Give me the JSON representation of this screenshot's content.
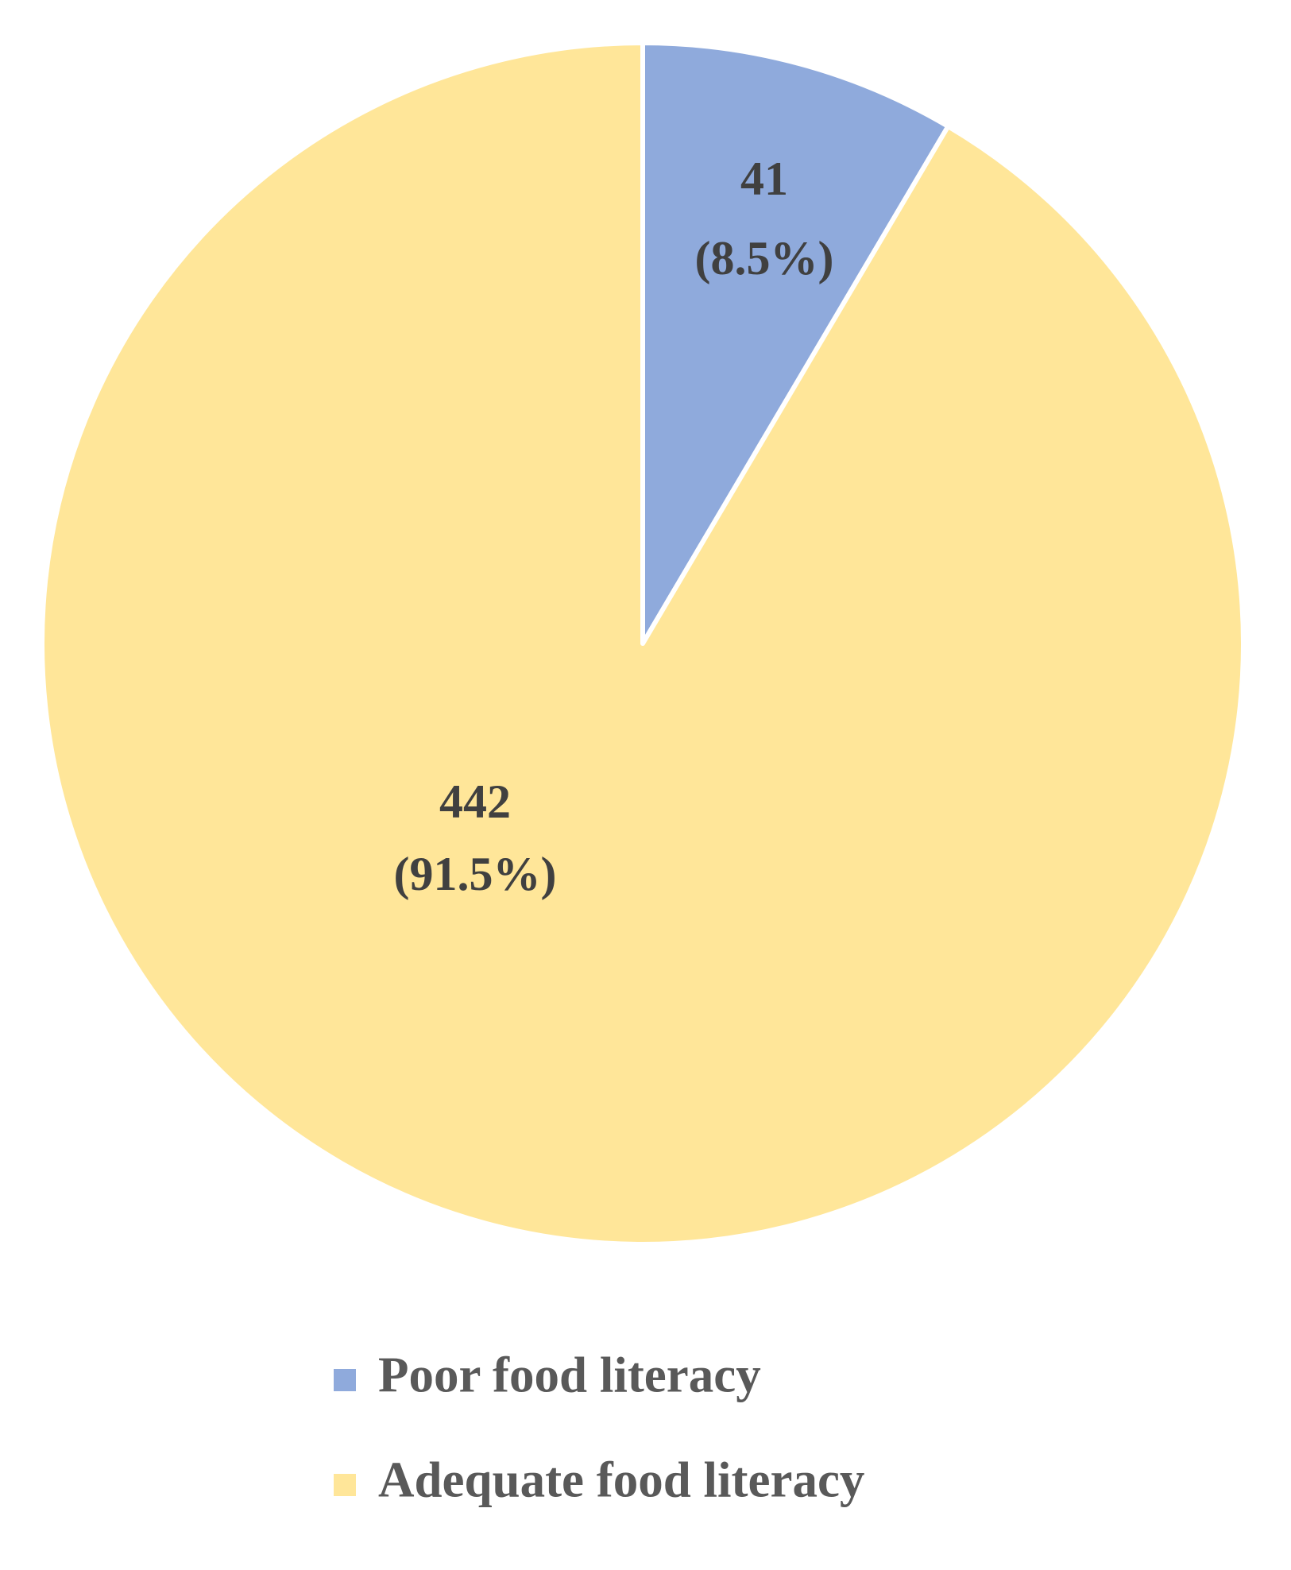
{
  "chart_data": {
    "type": "pie",
    "categories": [
      "Poor food literacy",
      "Adequate food literacy"
    ],
    "values": [
      41,
      442
    ],
    "percent_labels": [
      "(8.5%)",
      "(91.5%)"
    ],
    "colors": [
      "#8faadc",
      "#ffe699"
    ],
    "legend": "bottom"
  }
}
